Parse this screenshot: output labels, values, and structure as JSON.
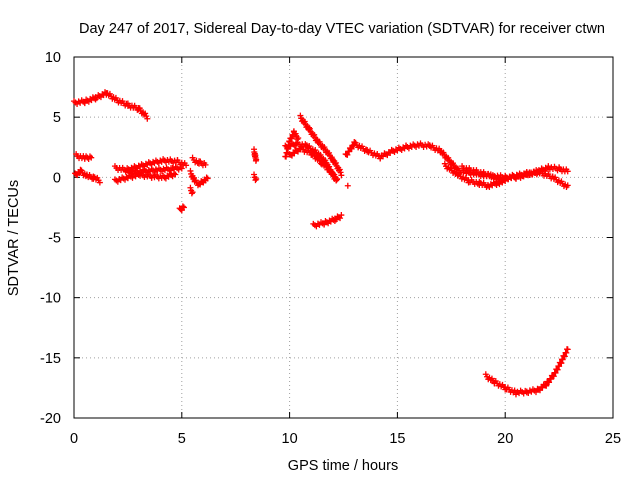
{
  "colors": {
    "series": "#ff0000",
    "grid": "#a0a0a0",
    "axis": "#000000"
  },
  "chart_data": {
    "type": "scatter",
    "title": "Day 247 of 2017, Sidereal Day-to-day VTEC variation (SDTVAR) for receiver ctwn",
    "xlabel": "GPS time / hours",
    "ylabel": "SDTVAR / TECUs",
    "xlim": [
      0,
      25
    ],
    "ylim": [
      -20,
      10
    ],
    "xticks": [
      0,
      5,
      10,
      15,
      20,
      25
    ],
    "yticks": [
      -20,
      -15,
      -10,
      -5,
      0,
      5,
      10
    ],
    "grid": true,
    "marker": "+",
    "series": [
      {
        "name": "SDTVAR",
        "tracks": [
          {
            "x": [
              0.0,
              0.5,
              1.0,
              1.5,
              2.0,
              2.5,
              3.0,
              3.4
            ],
            "y": [
              6.2,
              6.3,
              6.6,
              7.0,
              6.4,
              6.0,
              5.7,
              5.0
            ]
          },
          {
            "x": [
              0.1,
              0.5,
              0.8
            ],
            "y": [
              1.8,
              1.6,
              1.7
            ]
          },
          {
            "x": [
              0.05,
              0.3,
              0.6,
              0.9,
              1.2
            ],
            "y": [
              0.2,
              0.5,
              0.1,
              0.0,
              -0.3
            ]
          },
          {
            "x": [
              1.9,
              2.4,
              3.0,
              3.6,
              4.2,
              4.8,
              5.2
            ],
            "y": [
              0.8,
              0.6,
              0.9,
              1.2,
              1.4,
              1.3,
              1.0
            ]
          },
          {
            "x": [
              1.9,
              2.5,
              3.0,
              3.6,
              4.2,
              4.7
            ],
            "y": [
              -0.3,
              0.0,
              0.2,
              0.1,
              0.0,
              0.3
            ]
          },
          {
            "x": [
              2.5,
              3.2,
              3.8,
              4.5,
              5.0
            ],
            "y": [
              0.4,
              0.5,
              0.6,
              0.7,
              0.8
            ]
          },
          {
            "x": [
              4.9,
              5.0,
              5.1
            ],
            "y": [
              -2.7,
              -2.6,
              -2.5
            ]
          },
          {
            "x": [
              5.4,
              5.6,
              5.8,
              6.0,
              6.2
            ],
            "y": [
              0.4,
              -0.3,
              -0.6,
              -0.3,
              -0.1
            ]
          },
          {
            "x": [
              5.5,
              5.8,
              6.1
            ],
            "y": [
              1.5,
              1.2,
              1.1
            ]
          },
          {
            "x": [
              5.4,
              5.5
            ],
            "y": [
              -1.0,
              -1.3
            ]
          },
          {
            "x": [
              8.35,
              8.4,
              8.45
            ],
            "y": [
              2.2,
              1.8,
              1.4
            ]
          },
          {
            "x": [
              8.35,
              8.45
            ],
            "y": [
              0.1,
              -0.2
            ]
          },
          {
            "x": [
              9.8,
              10.0,
              10.2,
              10.4
            ],
            "y": [
              1.6,
              3.0,
              3.7,
              3.2
            ]
          },
          {
            "x": [
              10.5,
              10.9,
              11.3,
              11.7,
              12.0,
              12.4
            ],
            "y": [
              5.0,
              4.0,
              3.0,
              2.2,
              1.5,
              0.3
            ]
          },
          {
            "x": [
              9.8,
              10.3,
              10.8,
              11.3,
              11.7,
              12.0,
              12.2
            ],
            "y": [
              2.5,
              2.8,
              2.6,
              2.0,
              1.2,
              0.2,
              -0.3
            ]
          },
          {
            "x": [
              10.0,
              10.5,
              11.0,
              11.5,
              11.9,
              12.2
            ],
            "y": [
              1.8,
              2.4,
              2.0,
              1.2,
              0.5,
              -0.2
            ]
          },
          {
            "x": [
              11.1,
              11.6,
              12.1,
              12.4
            ],
            "y": [
              -4.0,
              -3.8,
              -3.5,
              -3.2
            ]
          },
          {
            "x": [
              12.7
            ],
            "y": [
              -0.7
            ]
          },
          {
            "x": [
              12.6,
              13.0,
              13.6,
              14.2,
              14.8,
              15.4,
              16.0,
              16.5,
              17.0,
              17.4,
              17.8,
              18.2,
              18.6,
              19.0,
              19.5,
              20.0,
              20.5,
              21.0,
              21.5,
              22.0,
              22.5,
              22.9
            ],
            "y": [
              1.8,
              2.8,
              2.2,
              1.7,
              2.2,
              2.5,
              2.7,
              2.6,
              2.2,
              1.4,
              0.6,
              0.4,
              0.3,
              0.2,
              0.1,
              0.0,
              0.0,
              0.2,
              0.5,
              0.8,
              0.7,
              0.5
            ]
          },
          {
            "x": [
              17.2,
              17.8,
              18.3,
              18.8,
              19.2,
              19.6,
              20.0
            ],
            "y": [
              1.0,
              0.2,
              -0.3,
              -0.5,
              -0.7,
              -0.5,
              -0.3
            ]
          },
          {
            "x": [
              18.0,
              18.6,
              19.2,
              19.8,
              20.4,
              21.0,
              21.6,
              22.2,
              22.9
            ],
            "y": [
              0.8,
              0.5,
              0.2,
              -0.2,
              0.1,
              0.3,
              0.4,
              0.0,
              -0.8
            ]
          },
          {
            "x": [
              19.1,
              19.5,
              20.0,
              20.5,
              21.0,
              21.5,
              21.9,
              22.3,
              22.6,
              22.9
            ],
            "y": [
              -16.5,
              -17.0,
              -17.5,
              -17.9,
              -17.8,
              -17.7,
              -17.2,
              -16.3,
              -15.3,
              -14.3
            ]
          }
        ]
      }
    ]
  }
}
